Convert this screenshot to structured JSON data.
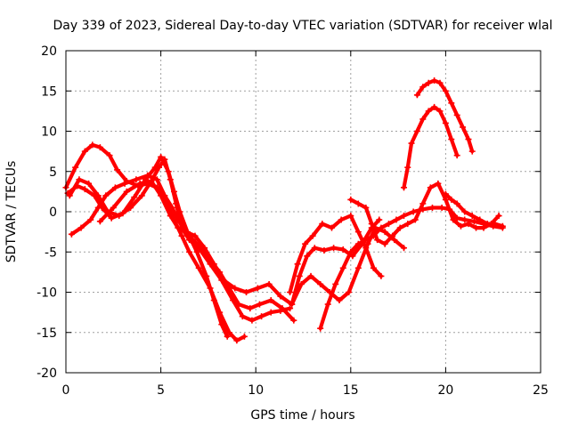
{
  "chart_data": {
    "type": "line",
    "title": "Day 339 of 2023, Sidereal Day-to-day VTEC variation (SDTVAR) for receiver wlal",
    "xlabel": "GPS time / hours",
    "ylabel": "SDTVAR / TECUs",
    "xlim": [
      0,
      25
    ],
    "ylim": [
      -20,
      20
    ],
    "xticks": [
      0,
      5,
      10,
      15,
      20,
      25
    ],
    "yticks": [
      -20,
      -15,
      -10,
      -5,
      0,
      5,
      10,
      15,
      20
    ],
    "x_tick_labels": [
      "0",
      "5",
      "10",
      "15",
      "20",
      "25"
    ],
    "y_tick_labels": [
      "-20",
      "-15",
      "-10",
      "-5",
      "0",
      "5",
      "10",
      "15",
      "20"
    ],
    "grid": true,
    "color": "#ff0000",
    "marker": "plus",
    "series": [
      {
        "name": "arc-1",
        "x": [
          0.0,
          0.5,
          1.0,
          1.4,
          1.8,
          2.3,
          2.7,
          3.2,
          3.8,
          4.3,
          4.8,
          5.3,
          5.7,
          6.1,
          6.5,
          7.0,
          7.6,
          8.1,
          8.6,
          9.0,
          9.4
        ],
        "y": [
          3.0,
          5.5,
          7.5,
          8.3,
          8.0,
          7.0,
          5.2,
          3.8,
          3.2,
          3.5,
          3.0,
          1.0,
          -1.0,
          -3.0,
          -5.0,
          -7.0,
          -9.5,
          -12.5,
          -15.0,
          -16.0,
          -15.5
        ]
      },
      {
        "name": "arc-2",
        "x": [
          0.1,
          0.6,
          1.0,
          1.5,
          1.9,
          2.4,
          3.0,
          3.6,
          4.2,
          4.7,
          5.0,
          5.4,
          5.7,
          6.0,
          6.4,
          6.9,
          7.4,
          7.8,
          8.2,
          8.5
        ],
        "y": [
          2.3,
          3.2,
          2.8,
          2.0,
          0.5,
          -0.8,
          -0.2,
          1.8,
          4.0,
          5.5,
          6.8,
          5.0,
          2.5,
          0.0,
          -2.5,
          -5.0,
          -8.0,
          -11.0,
          -14.0,
          -15.5
        ]
      },
      {
        "name": "arc-3",
        "x": [
          0.2,
          0.7,
          1.2,
          1.7,
          2.2,
          2.8,
          3.4,
          4.0,
          4.5,
          4.9,
          5.2,
          5.5,
          5.8,
          6.1,
          6.5,
          7.0,
          7.6,
          8.2,
          8.8,
          9.3,
          9.8,
          10.3,
          10.8,
          11.3,
          11.8
        ],
        "y": [
          2.0,
          4.0,
          3.5,
          2.0,
          0.0,
          -0.5,
          0.5,
          2.0,
          3.8,
          5.5,
          6.5,
          4.0,
          1.0,
          -2.0,
          -3.5,
          -4.5,
          -6.5,
          -8.5,
          -11.0,
          -13.0,
          -13.5,
          -13.0,
          -12.5,
          -12.3,
          -12.0
        ]
      },
      {
        "name": "arc-4",
        "x": [
          0.3,
          0.8,
          1.3,
          1.7,
          2.1,
          2.6,
          3.1,
          3.7,
          4.3,
          4.8,
          5.2,
          5.6,
          5.9,
          6.3,
          6.7,
          7.1,
          7.6,
          8.1,
          8.6,
          9.1,
          9.7,
          10.2,
          10.8,
          11.4,
          12.0
        ],
        "y": [
          -2.8,
          -2.0,
          -1.0,
          0.5,
          2.0,
          3.0,
          3.5,
          4.0,
          4.5,
          4.0,
          2.0,
          0.5,
          -1.0,
          -2.5,
          -3.5,
          -4.5,
          -6.0,
          -7.5,
          -9.5,
          -11.5,
          -12.0,
          -11.5,
          -11.0,
          -12.0,
          -13.5
        ]
      },
      {
        "name": "arc-5",
        "x": [
          1.8,
          2.5,
          3.2,
          3.9,
          4.5,
          5.0,
          5.5,
          5.9,
          6.3,
          6.8,
          7.3,
          7.8,
          8.3,
          8.9,
          9.5,
          10.1,
          10.7,
          11.3,
          11.9,
          12.4,
          12.9,
          13.4,
          13.9,
          14.4,
          14.9,
          15.4,
          15.9,
          16.3,
          16.8,
          17.3,
          17.8
        ],
        "y": [
          -1.2,
          0.5,
          2.5,
          3.5,
          3.8,
          2.0,
          -0.5,
          -2.0,
          -2.5,
          -3.0,
          -4.5,
          -6.5,
          -8.5,
          -9.5,
          -10.0,
          -9.5,
          -9.0,
          -10.5,
          -11.5,
          -9.0,
          -8.0,
          -9.0,
          -10.0,
          -11.0,
          -10.0,
          -7.0,
          -4.0,
          -2.0,
          -2.5,
          -3.5,
          -4.5
        ]
      },
      {
        "name": "arc-6",
        "x": [
          11.8,
          12.2,
          12.6,
          13.0,
          13.5,
          14.0,
          14.5,
          15.0,
          15.4,
          15.8,
          16.2,
          16.6
        ],
        "y": [
          -10.0,
          -6.5,
          -4.0,
          -3.0,
          -1.5,
          -2.0,
          -1.0,
          -0.5,
          -2.5,
          -4.5,
          -7.0,
          -8.0
        ]
      },
      {
        "name": "arc-7",
        "x": [
          11.9,
          12.3,
          12.7,
          13.1,
          13.6,
          14.1,
          14.6,
          15.1,
          15.6,
          16.1,
          16.5
        ],
        "y": [
          -11.5,
          -8.0,
          -5.5,
          -4.5,
          -4.8,
          -4.5,
          -4.7,
          -5.5,
          -4.0,
          -2.0,
          -1.0
        ]
      },
      {
        "name": "arc-8",
        "x": [
          13.4,
          13.8,
          14.2,
          14.6,
          15.0,
          15.4,
          15.8,
          16.2,
          16.6,
          17.0,
          17.4,
          17.8,
          18.3,
          18.8,
          19.3,
          19.8,
          20.2,
          20.6,
          21.0,
          21.5,
          22.0,
          22.5,
          23.0
        ],
        "y": [
          -14.5,
          -11.5,
          -9.0,
          -7.0,
          -5.0,
          -4.0,
          -3.5,
          -3.0,
          -2.0,
          -1.5,
          -1.0,
          -0.5,
          0.0,
          0.3,
          0.5,
          0.5,
          0.3,
          -0.8,
          -1.0,
          -1.2,
          -1.5,
          -1.8,
          -2.0
        ]
      },
      {
        "name": "arc-9",
        "x": [
          15.0,
          15.4,
          15.8,
          16.1,
          16.4,
          16.8,
          17.2,
          17.6,
          18.0,
          18.4,
          18.8,
          19.2,
          19.6,
          20.0,
          20.4,
          20.8,
          21.2,
          21.6,
          22.0,
          22.4,
          22.8
        ],
        "y": [
          1.5,
          1.0,
          0.5,
          -1.5,
          -3.5,
          -4.0,
          -3.0,
          -2.0,
          -1.5,
          -1.0,
          1.0,
          3.0,
          3.5,
          1.5,
          -1.0,
          -1.8,
          -1.5,
          -2.0,
          -2.0,
          -1.5,
          -0.5
        ]
      },
      {
        "name": "arc-10",
        "x": [
          20.0,
          20.3,
          20.6,
          21.0,
          21.4,
          21.8,
          22.2,
          22.6,
          23.0
        ],
        "y": [
          2.2,
          1.5,
          1.0,
          0.0,
          -0.5,
          -1.0,
          -1.5,
          -1.5,
          -1.8
        ]
      },
      {
        "name": "arc-11",
        "x": [
          17.8,
          18.0,
          18.2,
          18.5,
          18.8,
          19.1,
          19.4,
          19.7,
          20.0,
          20.3,
          20.6
        ],
        "y": [
          3.0,
          5.5,
          8.5,
          10.0,
          11.5,
          12.5,
          13.0,
          12.5,
          11.0,
          9.0,
          7.0
        ]
      },
      {
        "name": "arc-12",
        "x": [
          18.5,
          18.8,
          19.1,
          19.4,
          19.7,
          20.0,
          20.3,
          20.6,
          20.9,
          21.2,
          21.4
        ],
        "y": [
          14.5,
          15.5,
          16.0,
          16.3,
          16.0,
          15.0,
          13.5,
          12.0,
          10.5,
          9.0,
          7.5
        ]
      }
    ]
  }
}
